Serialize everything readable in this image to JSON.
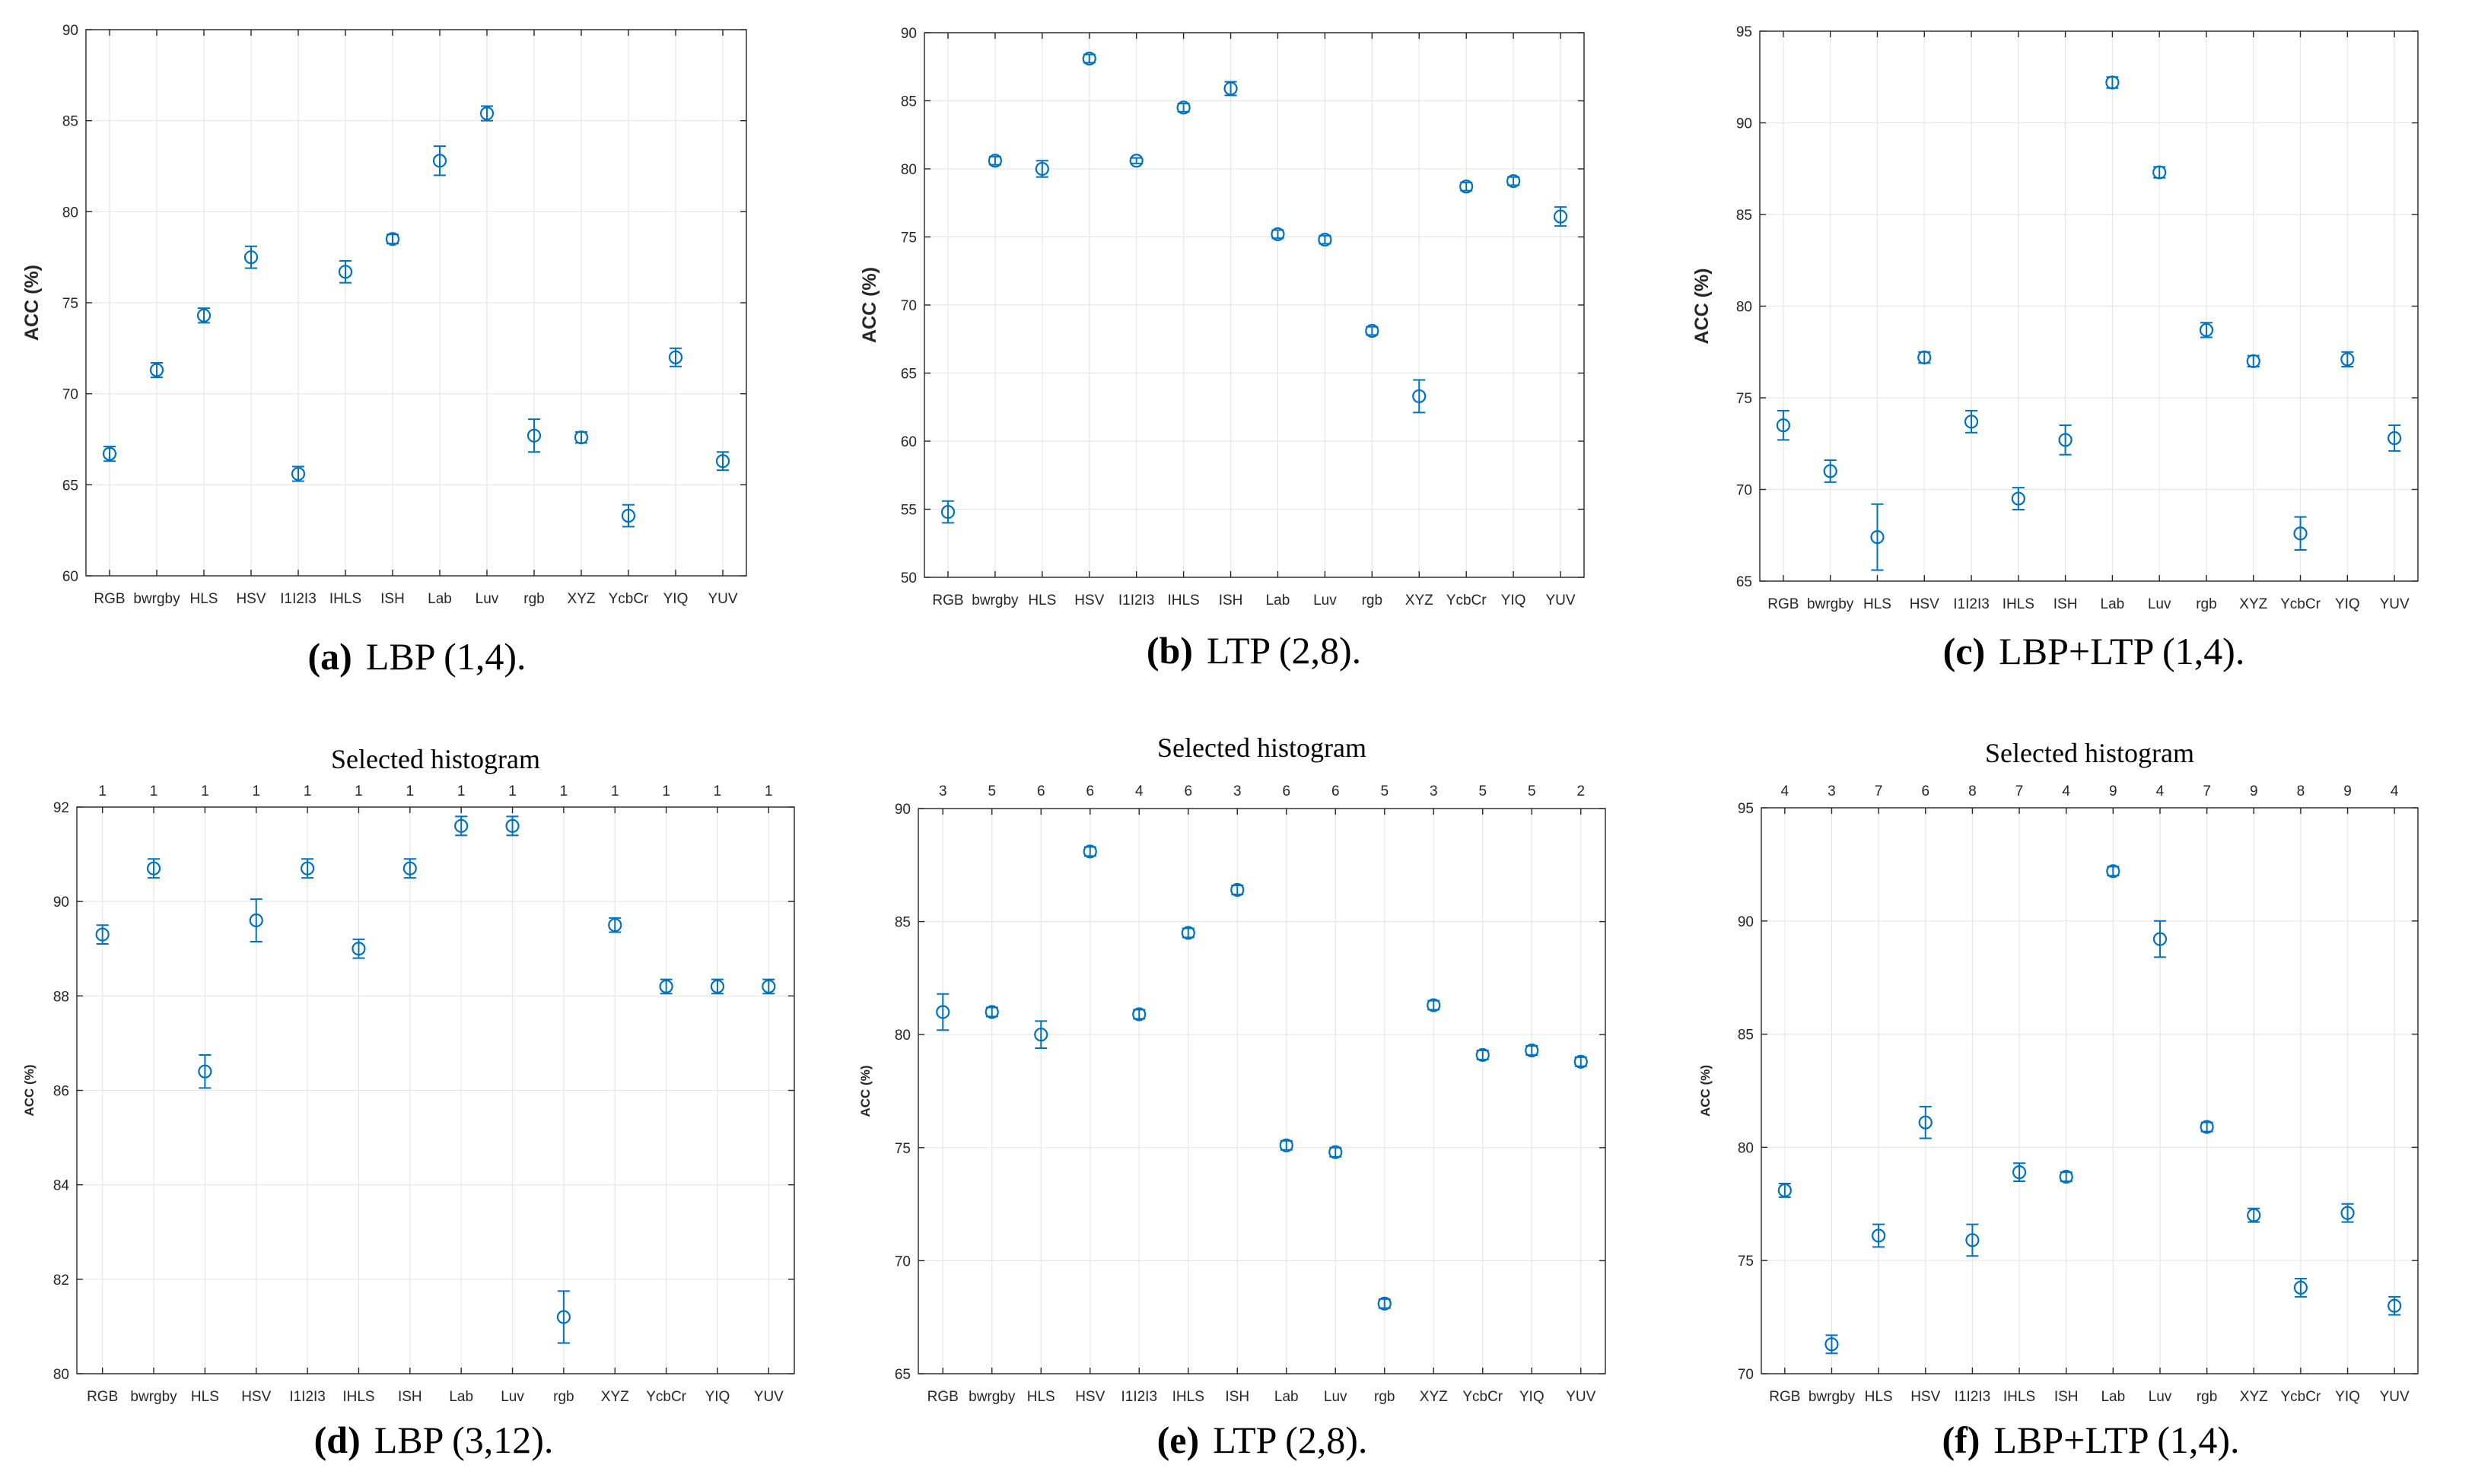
{
  "chart_data": [
    {
      "type": "scatter",
      "panel_id": "a",
      "caption_letter": "(a)",
      "caption_text": "LBP (1,4).",
      "title": "",
      "ylabel": "ACC (%)",
      "xlabel": "",
      "ylim": [
        60,
        90
      ],
      "yticks": [
        60,
        65,
        70,
        75,
        80,
        85,
        90
      ],
      "categories": [
        "RGB",
        "bwrgby",
        "HLS",
        "HSV",
        "I1I2I3",
        "IHLS",
        "ISH",
        "Lab",
        "Luv",
        "rgb",
        "XYZ",
        "YcbCr",
        "YIQ",
        "YUV"
      ],
      "values": [
        66.7,
        71.3,
        74.3,
        77.5,
        65.6,
        76.7,
        78.5,
        82.8,
        85.4,
        67.7,
        67.6,
        63.3,
        72.0,
        66.3
      ],
      "errors": [
        0.4,
        0.4,
        0.4,
        0.6,
        0.4,
        0.6,
        0.25,
        0.8,
        0.4,
        0.9,
        0.3,
        0.6,
        0.5,
        0.5
      ],
      "grid": true
    },
    {
      "type": "scatter",
      "panel_id": "b",
      "caption_letter": "(b)",
      "caption_text": "LTP (2,8).",
      "title": "",
      "ylabel": "ACC (%)",
      "xlabel": "",
      "ylim": [
        50,
        90
      ],
      "yticks": [
        50,
        55,
        60,
        65,
        70,
        75,
        80,
        85,
        90
      ],
      "categories": [
        "RGB",
        "bwrgby",
        "HLS",
        "HSV",
        "I1I2I3",
        "IHLS",
        "ISH",
        "Lab",
        "Luv",
        "rgb",
        "XYZ",
        "YcbCr",
        "YIQ",
        "YUV"
      ],
      "values": [
        54.8,
        80.6,
        80.0,
        88.1,
        80.6,
        84.5,
        85.9,
        75.2,
        74.8,
        68.1,
        63.3,
        78.7,
        79.1,
        76.5
      ],
      "errors": [
        0.8,
        0.3,
        0.6,
        0.3,
        0.2,
        0.3,
        0.5,
        0.3,
        0.3,
        0.3,
        1.2,
        0.3,
        0.3,
        0.7
      ],
      "grid": true
    },
    {
      "type": "scatter",
      "panel_id": "c",
      "caption_letter": "(c)",
      "caption_text": "LBP+LTP (1,4).",
      "title": "",
      "ylabel": "ACC (%)",
      "xlabel": "",
      "ylim": [
        65,
        95
      ],
      "yticks": [
        65,
        70,
        75,
        80,
        85,
        90,
        95
      ],
      "categories": [
        "RGB",
        "bwrgby",
        "HLS",
        "HSV",
        "I1I2I3",
        "IHLS",
        "ISH",
        "Lab",
        "Luv",
        "rgb",
        "XYZ",
        "YcbCr",
        "YIQ",
        "YUV"
      ],
      "values": [
        73.5,
        71.0,
        67.4,
        77.2,
        73.7,
        69.5,
        72.7,
        92.2,
        87.3,
        78.7,
        77.0,
        67.6,
        77.1,
        72.8
      ],
      "errors": [
        0.8,
        0.6,
        1.8,
        0.3,
        0.6,
        0.6,
        0.8,
        0.3,
        0.3,
        0.4,
        0.3,
        0.9,
        0.4,
        0.7
      ],
      "grid": true
    },
    {
      "type": "scatter",
      "panel_id": "d",
      "caption_letter": "(d)",
      "caption_text": "LBP (3,12).",
      "title": "Selected histogram",
      "ylabel": "ACC (%)",
      "xlabel": "",
      "ylim": [
        80,
        92
      ],
      "yticks": [
        80,
        82,
        84,
        86,
        88,
        90,
        92
      ],
      "categories": [
        "RGB",
        "bwrgby",
        "HLS",
        "HSV",
        "I1I2I3",
        "IHLS",
        "ISH",
        "Lab",
        "Luv",
        "rgb",
        "XYZ",
        "YcbCr",
        "YIQ",
        "YUV"
      ],
      "top_labels": [
        "1",
        "1",
        "1",
        "1",
        "1",
        "1",
        "1",
        "1",
        "1",
        "1",
        "1",
        "1",
        "1",
        "1"
      ],
      "values": [
        89.3,
        90.7,
        86.4,
        89.6,
        90.7,
        89.0,
        90.7,
        91.6,
        91.6,
        81.2,
        89.5,
        88.2,
        88.2,
        88.2
      ],
      "errors": [
        0.2,
        0.2,
        0.35,
        0.45,
        0.2,
        0.2,
        0.2,
        0.2,
        0.2,
        0.55,
        0.15,
        0.15,
        0.15,
        0.15
      ],
      "grid": true
    },
    {
      "type": "scatter",
      "panel_id": "e",
      "caption_letter": "(e)",
      "caption_text": "LTP (2,8).",
      "title": "Selected histogram",
      "ylabel": "ACC (%)",
      "xlabel": "",
      "ylim": [
        65,
        90
      ],
      "yticks": [
        65,
        70,
        75,
        80,
        85,
        90
      ],
      "categories": [
        "RGB",
        "bwrgby",
        "HLS",
        "HSV",
        "I1I2I3",
        "IHLS",
        "ISH",
        "Lab",
        "Luv",
        "rgb",
        "XYZ",
        "YcbCr",
        "YIQ",
        "YUV"
      ],
      "top_labels": [
        "3",
        "5",
        "6",
        "6",
        "4",
        "6",
        "3",
        "6",
        "6",
        "5",
        "3",
        "5",
        "5",
        "2"
      ],
      "values": [
        81.0,
        81.0,
        80.0,
        88.1,
        80.9,
        84.5,
        86.4,
        75.1,
        74.8,
        68.1,
        81.3,
        79.1,
        79.3,
        78.8
      ],
      "errors": [
        0.8,
        0.2,
        0.6,
        0.2,
        0.2,
        0.2,
        0.2,
        0.2,
        0.2,
        0.2,
        0.2,
        0.2,
        0.2,
        0.2
      ],
      "grid": true
    },
    {
      "type": "scatter",
      "panel_id": "f",
      "caption_letter": "(f)",
      "caption_text": "LBP+LTP (1,4).",
      "title": "Selected histogram",
      "ylabel": "ACC (%)",
      "xlabel": "",
      "ylim": [
        70,
        95
      ],
      "yticks": [
        70,
        75,
        80,
        85,
        90,
        95
      ],
      "categories": [
        "RGB",
        "bwrgby",
        "HLS",
        "HSV",
        "I1I2I3",
        "IHLS",
        "ISH",
        "Lab",
        "Luv",
        "rgb",
        "XYZ",
        "YcbCr",
        "YIQ",
        "YUV"
      ],
      "top_labels": [
        "4",
        "3",
        "7",
        "6",
        "8",
        "7",
        "4",
        "9",
        "4",
        "7",
        "9",
        "8",
        "9",
        "4"
      ],
      "values": [
        78.1,
        71.3,
        76.1,
        81.1,
        75.9,
        78.9,
        78.7,
        92.2,
        89.2,
        80.9,
        77.0,
        73.8,
        77.1,
        73.0
      ],
      "errors": [
        0.3,
        0.4,
        0.5,
        0.7,
        0.7,
        0.4,
        0.2,
        0.2,
        0.8,
        0.2,
        0.3,
        0.4,
        0.4,
        0.4
      ],
      "grid": true
    }
  ],
  "colors": {
    "marker": "#0072bd",
    "grid": "#e6e6e6",
    "axis": "#262626"
  }
}
